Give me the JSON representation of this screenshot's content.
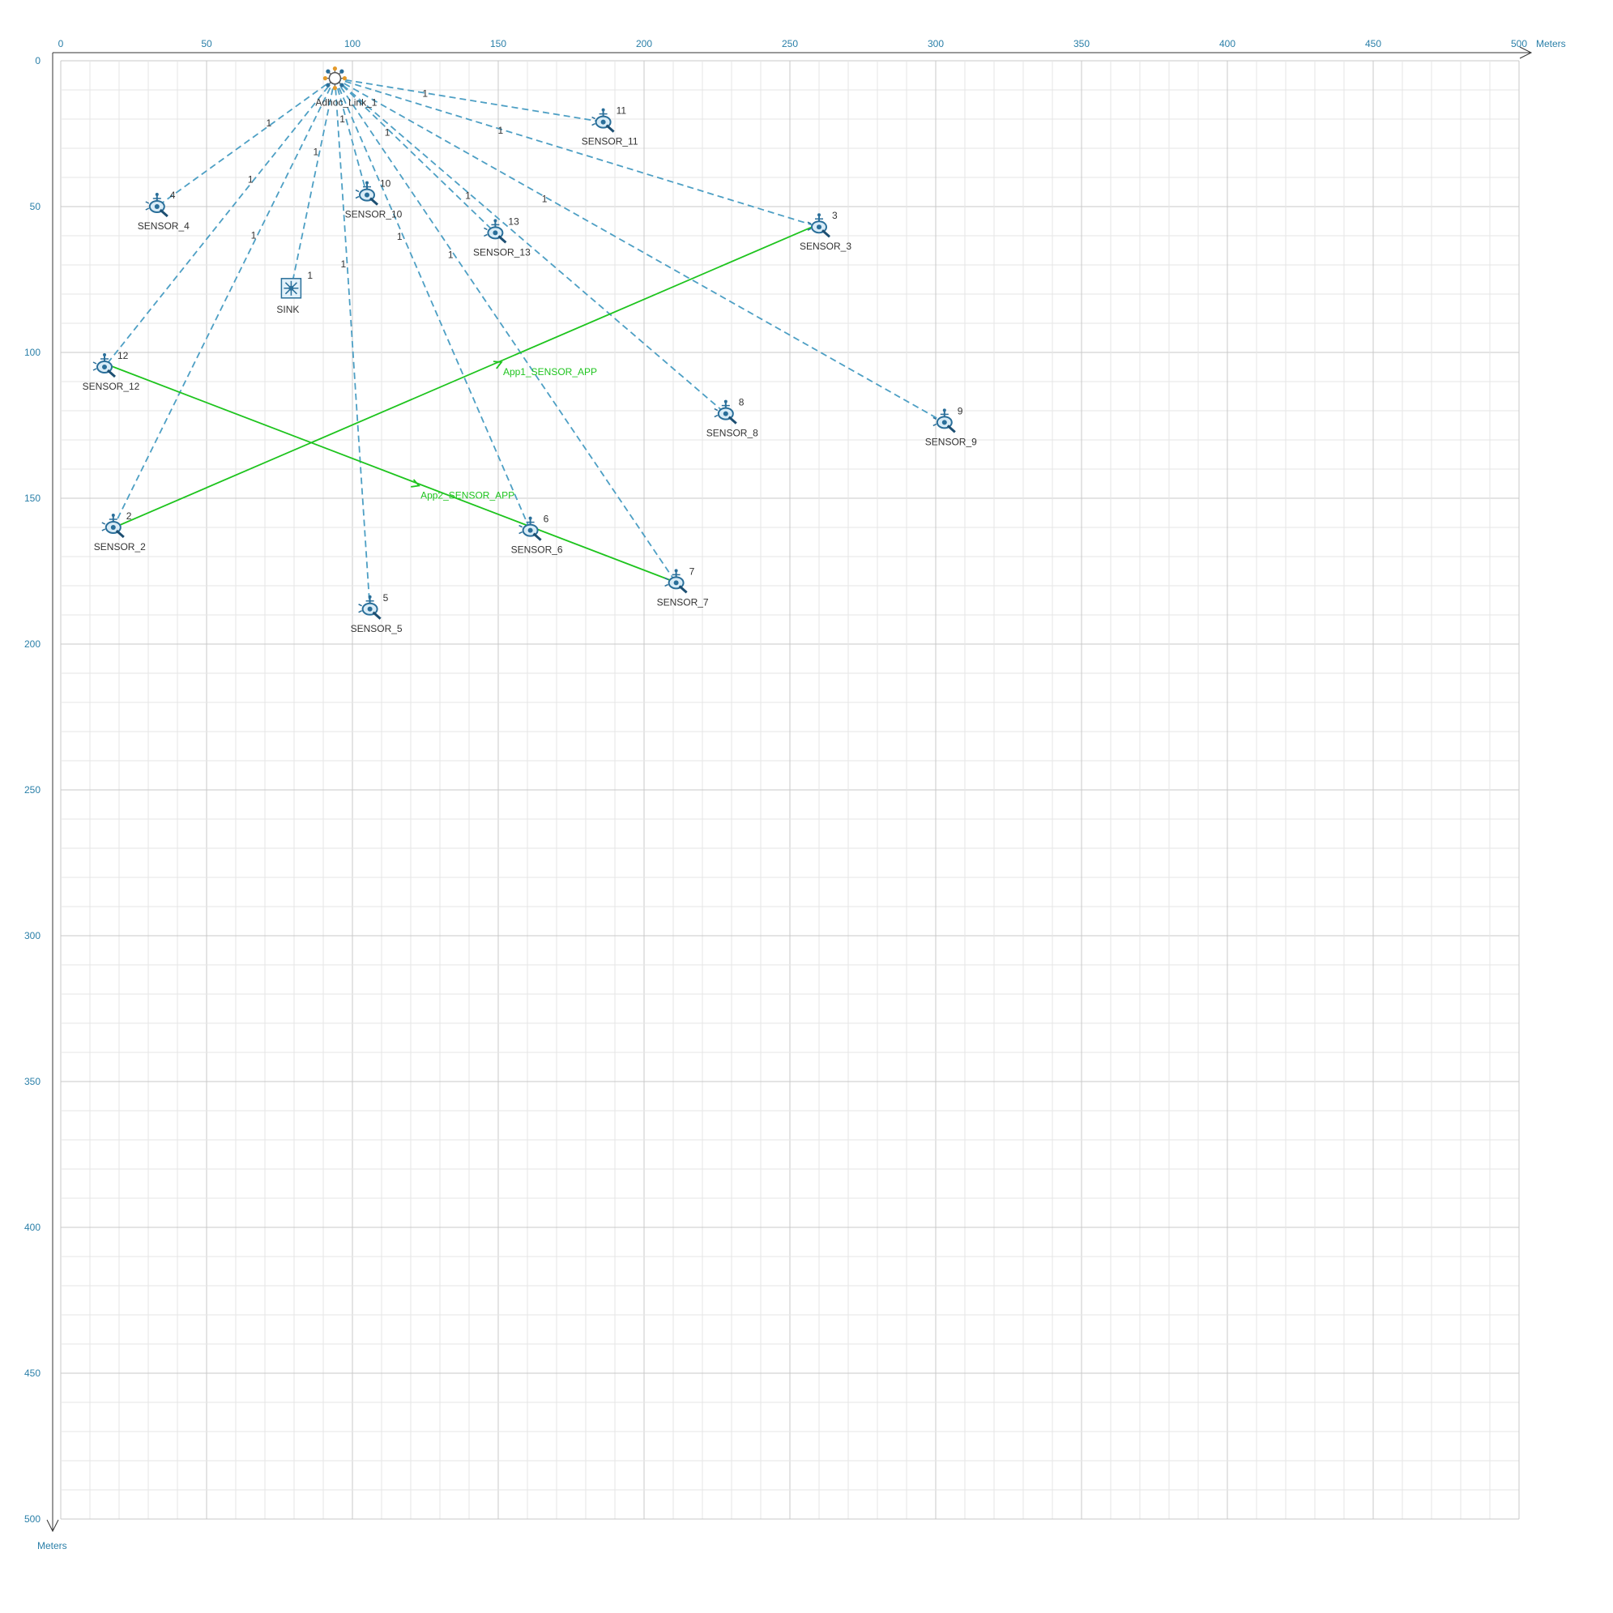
{
  "canvas": {
    "x_unit": "Meters",
    "y_unit": "Meters",
    "x_ticks": [
      "0",
      "50",
      "100",
      "150",
      "200",
      "250",
      "300",
      "350",
      "400",
      "450",
      "500"
    ],
    "y_ticks": [
      "0",
      "50",
      "100",
      "150",
      "200",
      "250",
      "300",
      "350",
      "400",
      "450",
      "500"
    ],
    "colors": {
      "axis": "#333333",
      "tick_text": "#2a7fa8",
      "grid_major": "#c8c8c8",
      "grid_minor": "#e6e6e6",
      "wired_link": "#4d9fc4",
      "app_flow": "#1ec41e"
    }
  },
  "adhoc_link": {
    "label": "Adhoc_Link_1",
    "x": 94,
    "y": 6,
    "icon": "adhoc-link-hub-icon"
  },
  "sink": {
    "label": "SINK",
    "id": "1",
    "x": 79,
    "y": 78,
    "icon": "sink-node-icon"
  },
  "sensors": [
    {
      "label": "SENSOR_2",
      "id": "2",
      "x": 18,
      "y": 160
    },
    {
      "label": "SENSOR_3",
      "id": "3",
      "x": 260,
      "y": 57
    },
    {
      "label": "SENSOR_4",
      "id": "4",
      "x": 33,
      "y": 50
    },
    {
      "label": "SENSOR_5",
      "id": "5",
      "x": 106,
      "y": 188
    },
    {
      "label": "SENSOR_6",
      "id": "6",
      "x": 161,
      "y": 161
    },
    {
      "label": "SENSOR_7",
      "id": "7",
      "x": 211,
      "y": 179
    },
    {
      "label": "SENSOR_8",
      "id": "8",
      "x": 228,
      "y": 121
    },
    {
      "label": "SENSOR_9",
      "id": "9",
      "x": 303,
      "y": 124
    },
    {
      "label": "SENSOR_10",
      "id": "10",
      "x": 105,
      "y": 46
    },
    {
      "label": "SENSOR_11",
      "id": "11",
      "x": 186,
      "y": 21
    },
    {
      "label": "SENSOR_12",
      "id": "12",
      "x": 15,
      "y": 105
    },
    {
      "label": "SENSOR_13",
      "id": "13",
      "x": 149,
      "y": 59
    }
  ],
  "links": [
    {
      "to": "SENSOR_4",
      "label": "1"
    },
    {
      "to": "SENSOR_12",
      "label": "1"
    },
    {
      "to": "SENSOR_2",
      "label": "1"
    },
    {
      "to": "SINK",
      "label": "1"
    },
    {
      "to": "SENSOR_5",
      "label": "1"
    },
    {
      "to": "SENSOR_10",
      "label": "1"
    },
    {
      "to": "SENSOR_6",
      "label": "1"
    },
    {
      "to": "SENSOR_13",
      "label": "1"
    },
    {
      "to": "SENSOR_7",
      "label": "1"
    },
    {
      "to": "SENSOR_8",
      "label": "1"
    },
    {
      "to": "SENSOR_11",
      "label": "1"
    },
    {
      "to": "SENSOR_3",
      "label": "1"
    },
    {
      "to": "SENSOR_9",
      "label": "1"
    }
  ],
  "applications": [
    {
      "label": "App1_SENSOR_APP",
      "from": "SENSOR_2",
      "to": "SENSOR_3"
    },
    {
      "label": "App2_SENSOR_APP",
      "from": "SENSOR_12",
      "to": "SENSOR_7"
    }
  ]
}
